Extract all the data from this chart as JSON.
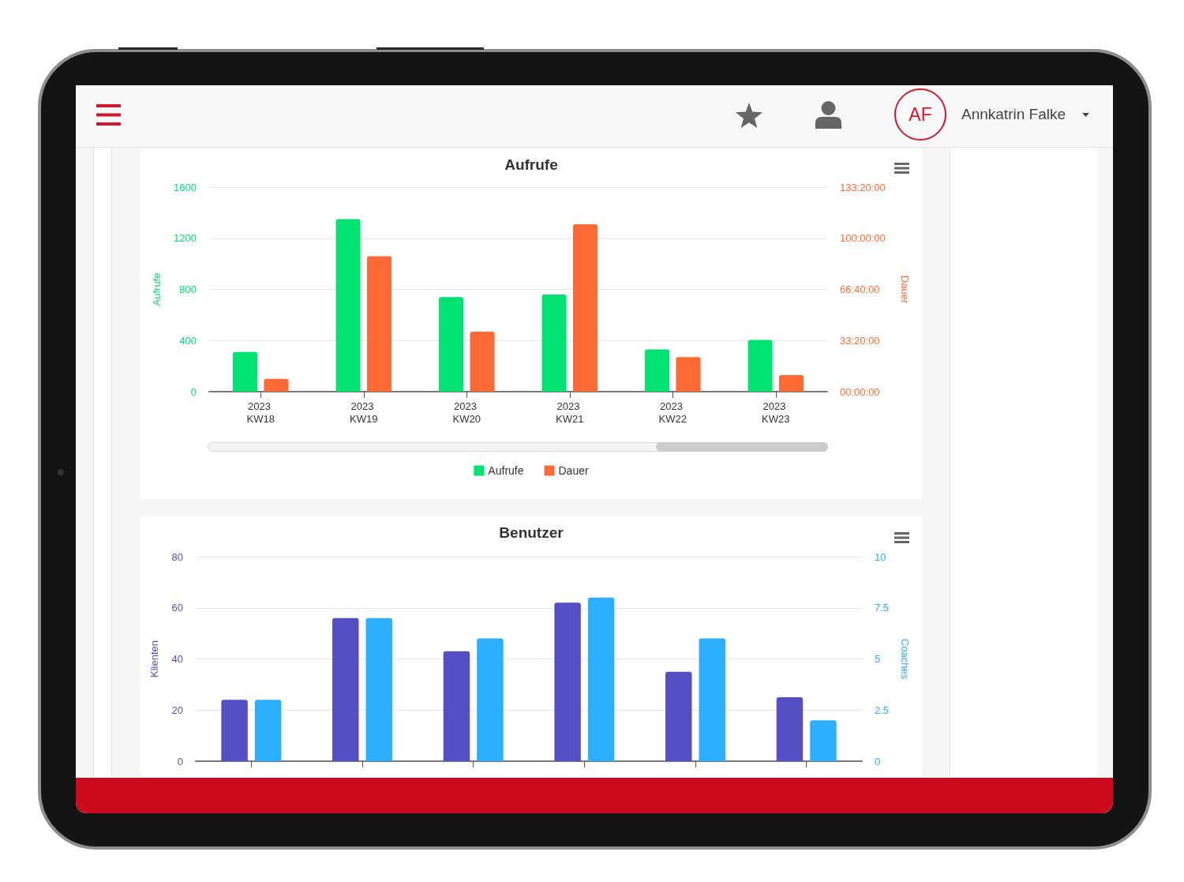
{
  "chart_data": [
    {
      "type": "other",
      "annotations": [
        "AF",
        "Annkatrin Falke"
      ]
    },
    {
      "type": "bar",
      "title": "Aufrufe",
      "ylabel": "Aufrufe",
      "y2label": "Dauer",
      "categories": [
        "2023 KW18",
        "2023 KW19",
        "2023 KW20",
        "2023 KW21",
        "2023 KW22",
        "2023 KW23"
      ],
      "series": [
        {
          "name": "Aufrufe",
          "color": "#00e272",
          "values": [
            310,
            1350,
            740,
            760,
            330,
            405
          ]
        },
        {
          "name": "Dauer",
          "color": "#fe6a35",
          "axis": "y2",
          "values": [
            500,
            5300,
            2350,
            6550,
            1350,
            650
          ]
        }
      ],
      "ylim": [
        0,
        1600
      ],
      "yticks": [
        0,
        400,
        800,
        1200,
        1600
      ],
      "y2lim": [
        0,
        8000
      ],
      "y2ticks": [
        {
          "value": 0,
          "label": "00:00:00"
        },
        {
          "value": 2000,
          "label": "33:20:00"
        },
        {
          "value": 4000,
          "label": "66:40:00"
        },
        {
          "value": 6000,
          "label": "100:00:00"
        },
        {
          "value": 8000,
          "label": "133:20:00"
        }
      ],
      "grid": "y",
      "legend": "bottom"
    },
    {
      "type": "bar",
      "title": "Benutzer",
      "ylabel": "Klienten",
      "y2label": "Coaches",
      "categories": [
        null,
        null,
        null,
        null,
        null,
        null
      ],
      "series": [
        {
          "color": "#544fc5",
          "values": [
            24,
            56,
            43,
            62,
            35,
            25
          ]
        },
        {
          "color": "#2caffe",
          "axis": "y2",
          "values": [
            3,
            7,
            6,
            8,
            6,
            2
          ]
        }
      ],
      "ylim": [
        0,
        80
      ],
      "yticks": [
        0,
        20,
        40,
        60,
        80
      ],
      "y2lim": [
        0,
        10
      ],
      "y2ticks": [
        0,
        2.5,
        5,
        7.5,
        10
      ],
      "grid": "y"
    }
  ]
}
